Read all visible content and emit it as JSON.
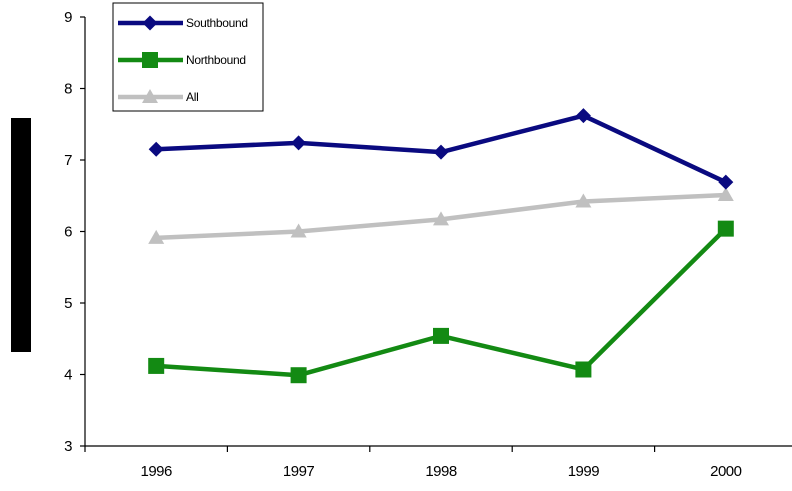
{
  "chart_data": {
    "type": "line",
    "categories": [
      "1996",
      "1997",
      "1998",
      "1999",
      "2000"
    ],
    "ylim": [
      3,
      9
    ],
    "yticks": [
      "3",
      "4",
      "5",
      "6",
      "7",
      "8",
      "9"
    ],
    "grid": false,
    "legend_position": "top-left",
    "series": [
      {
        "name": "Southbound",
        "values": [
          7.15,
          7.24,
          7.11,
          7.62,
          6.69
        ],
        "color": "#0a0a80",
        "marker": "diamond"
      },
      {
        "name": "Northbound",
        "values": [
          4.12,
          3.99,
          4.54,
          4.07,
          6.04
        ],
        "color": "#138a13",
        "marker": "square"
      },
      {
        "name": "All",
        "values": [
          5.91,
          6.0,
          6.17,
          6.42,
          6.51
        ],
        "color": "#c0c0c0",
        "marker": "triangle"
      }
    ]
  }
}
